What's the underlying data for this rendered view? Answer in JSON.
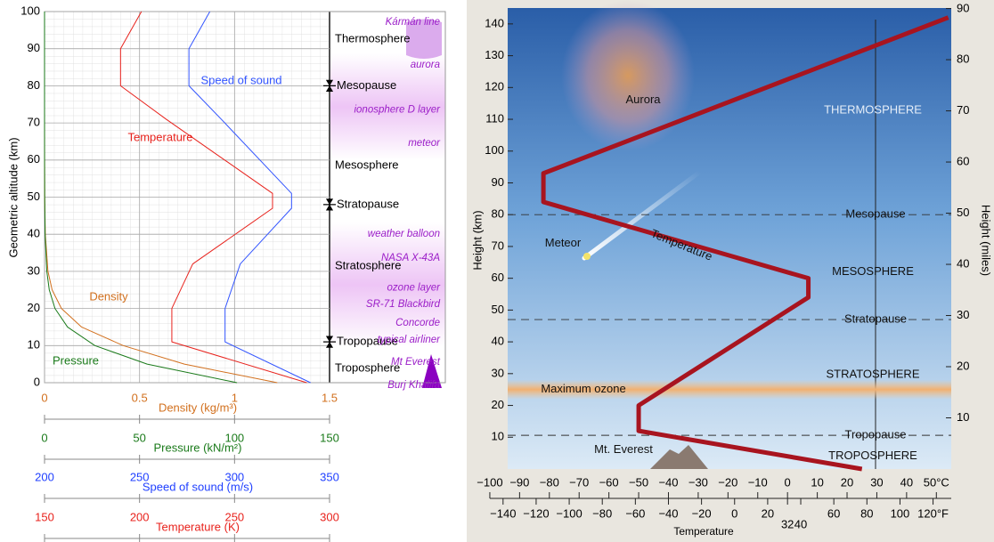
{
  "chart_data": [
    {
      "type": "line",
      "ylabel": "Geometric altitude (km)",
      "ylim": [
        0,
        100
      ],
      "yticks": [
        0,
        10,
        20,
        30,
        40,
        50,
        60,
        70,
        80,
        90,
        100
      ],
      "x_axes": [
        {
          "label": "Density (kg/m³)",
          "color": "#d2701e",
          "xlim": [
            0,
            1.5
          ],
          "xticks": [
            0,
            0.5,
            1,
            1.5
          ]
        },
        {
          "label": "Pressure (kN/m²)",
          "color": "#1a7a1a",
          "xlim": [
            0,
            150
          ],
          "xticks": [
            0,
            50,
            100,
            150
          ]
        },
        {
          "label": "Speed of sound (m/s)",
          "color": "#1f3fff",
          "xlim": [
            200,
            350
          ],
          "xticks": [
            200,
            250,
            300,
            350
          ]
        },
        {
          "label": "Temperature (K)",
          "color": "#e8221c",
          "xlim": [
            150,
            300
          ],
          "xticks": [
            150,
            200,
            250,
            300
          ]
        }
      ],
      "series": [
        {
          "name": "Temperature",
          "color": "#e8221c",
          "axis": 3,
          "x": [
            288,
            217,
            217,
            228,
            270,
            270,
            214,
            190,
            190,
            201
          ],
          "y": [
            0,
            11,
            20,
            32,
            47,
            51,
            71,
            80,
            90,
            100
          ]
        },
        {
          "name": "Speed of sound",
          "color": "#3355ff",
          "axis": 2,
          "x": [
            340,
            295,
            295,
            303,
            330,
            330,
            293,
            276,
            276,
            287
          ],
          "y": [
            0,
            11,
            20,
            32,
            47,
            51,
            71,
            80,
            90,
            100
          ]
        },
        {
          "name": "Density",
          "color": "#d2701e",
          "axis": 0,
          "x": [
            1.225,
            0.736,
            0.414,
            0.195,
            0.089,
            0.04,
            0.018,
            0.004,
            0.001,
            0.0003,
            0.0001,
            2e-05,
            0
          ],
          "y": [
            0,
            5,
            10,
            15,
            20,
            25,
            30,
            40,
            50,
            60,
            70,
            80,
            100
          ]
        },
        {
          "name": "Pressure",
          "color": "#1a7a1a",
          "axis": 1,
          "x": [
            101.3,
            54,
            26.5,
            12.1,
            5.5,
            2.5,
            1.2,
            0.29,
            0.08,
            0.02,
            0.005,
            0.001,
            0
          ],
          "y": [
            0,
            5,
            10,
            15,
            20,
            25,
            30,
            40,
            50,
            60,
            70,
            80,
            100
          ]
        }
      ],
      "boundaries": [
        {
          "text": "Mesopause",
          "y": 80
        },
        {
          "text": "Stratopause",
          "y": 48
        },
        {
          "text": "Tropopause",
          "y": 11
        }
      ],
      "layers": [
        {
          "text": "Thermosphere",
          "y": 92.5
        },
        {
          "text": "Mesosphere",
          "y": 58.5
        },
        {
          "text": "Stratosphere",
          "y": 31.4
        },
        {
          "text": "Troposphere",
          "y": 3.8
        }
      ],
      "phenomena": [
        {
          "text": "Kármán line",
          "y": 98.6
        },
        {
          "text": "aurora",
          "y": 87
        },
        {
          "text": "ionosphere D layer",
          "y": 75
        },
        {
          "text": "meteor",
          "y": 66
        },
        {
          "text": "weather balloon",
          "y": 41.5
        },
        {
          "text": "NASA X-43A",
          "y": 35
        },
        {
          "text": "ozone layer",
          "y": 27
        },
        {
          "text": "SR-71 Blackbird",
          "y": 22.5
        },
        {
          "text": "Concorde",
          "y": 17.5
        },
        {
          "text": "typical airliner",
          "y": 13
        },
        {
          "text": "Mt Everest",
          "y": 7
        },
        {
          "text": "Burj Khalifa",
          "y": 0.7
        }
      ]
    },
    {
      "type": "line",
      "xlabel": "Temperature",
      "ylabel": "Height (km)",
      "y2label": "Height (miles)",
      "ylim": [
        0,
        145
      ],
      "yticks": [
        10,
        20,
        30,
        40,
        50,
        60,
        70,
        80,
        90,
        100,
        110,
        120,
        130,
        140
      ],
      "y2lim": [
        0,
        90.1
      ],
      "y2ticks": [
        10,
        20,
        30,
        40,
        50,
        60,
        70,
        80,
        90
      ],
      "xlim": [
        -94,
        55
      ],
      "xticks": [
        {
          "value": -100,
          "label": "−100"
        },
        {
          "value": -90,
          "label": "−90"
        },
        {
          "value": -80,
          "label": "−80"
        },
        {
          "value": -70,
          "label": "−70"
        },
        {
          "value": -60,
          "label": "−60"
        },
        {
          "value": -50,
          "label": "−50"
        },
        {
          "value": -40,
          "label": "−40"
        },
        {
          "value": -30,
          "label": "−30"
        },
        {
          "value": -20,
          "label": "−20"
        },
        {
          "value": -10,
          "label": "−10"
        },
        0,
        10,
        20,
        30,
        40,
        {
          "value": 50,
          "label": "50°C"
        }
      ],
      "x2lim": [
        -137.2,
        131
      ],
      "x2ticks": [
        {
          "value": -140,
          "label": "−140"
        },
        {
          "value": -120,
          "label": "−120"
        },
        {
          "value": -100,
          "label": "−100"
        },
        {
          "value": -80,
          "label": "−80"
        },
        {
          "value": -60,
          "label": "−60"
        },
        {
          "value": -40,
          "label": "−40"
        },
        {
          "value": -20,
          "label": "−20"
        },
        0,
        20,
        32,
        40,
        60,
        80,
        100,
        {
          "value": 120,
          "label": "120°F"
        }
      ],
      "series": [
        {
          "name": "Temperature",
          "color": "#a8141f",
          "x": [
            25,
            -50,
            -50,
            7,
            7,
            -82,
            -82,
            54
          ],
          "y": [
            0,
            12,
            20,
            54,
            60,
            84,
            93,
            142
          ]
        }
      ],
      "boundaries": [
        {
          "text": "Mesopause",
          "y": 80
        },
        {
          "text": "Stratopause",
          "y": 47
        },
        {
          "text": "Tropopause",
          "y": 10.6
        }
      ],
      "layers": [
        {
          "text": "THERMOSPHERE",
          "y": 112.8
        },
        {
          "text": "MESOSPHERE",
          "y": 62
        },
        {
          "text": "STRATOSPHERE",
          "y": 29.7
        },
        {
          "text": "TROPOSPHERE",
          "y": 4
        }
      ],
      "annotations": [
        {
          "text": "Aurora",
          "y": 116
        },
        {
          "text": "Meteor",
          "y": 71
        },
        {
          "text": "Maximum ozone",
          "y": 25
        },
        {
          "text": "Mt. Everest",
          "y": 6
        }
      ]
    }
  ]
}
